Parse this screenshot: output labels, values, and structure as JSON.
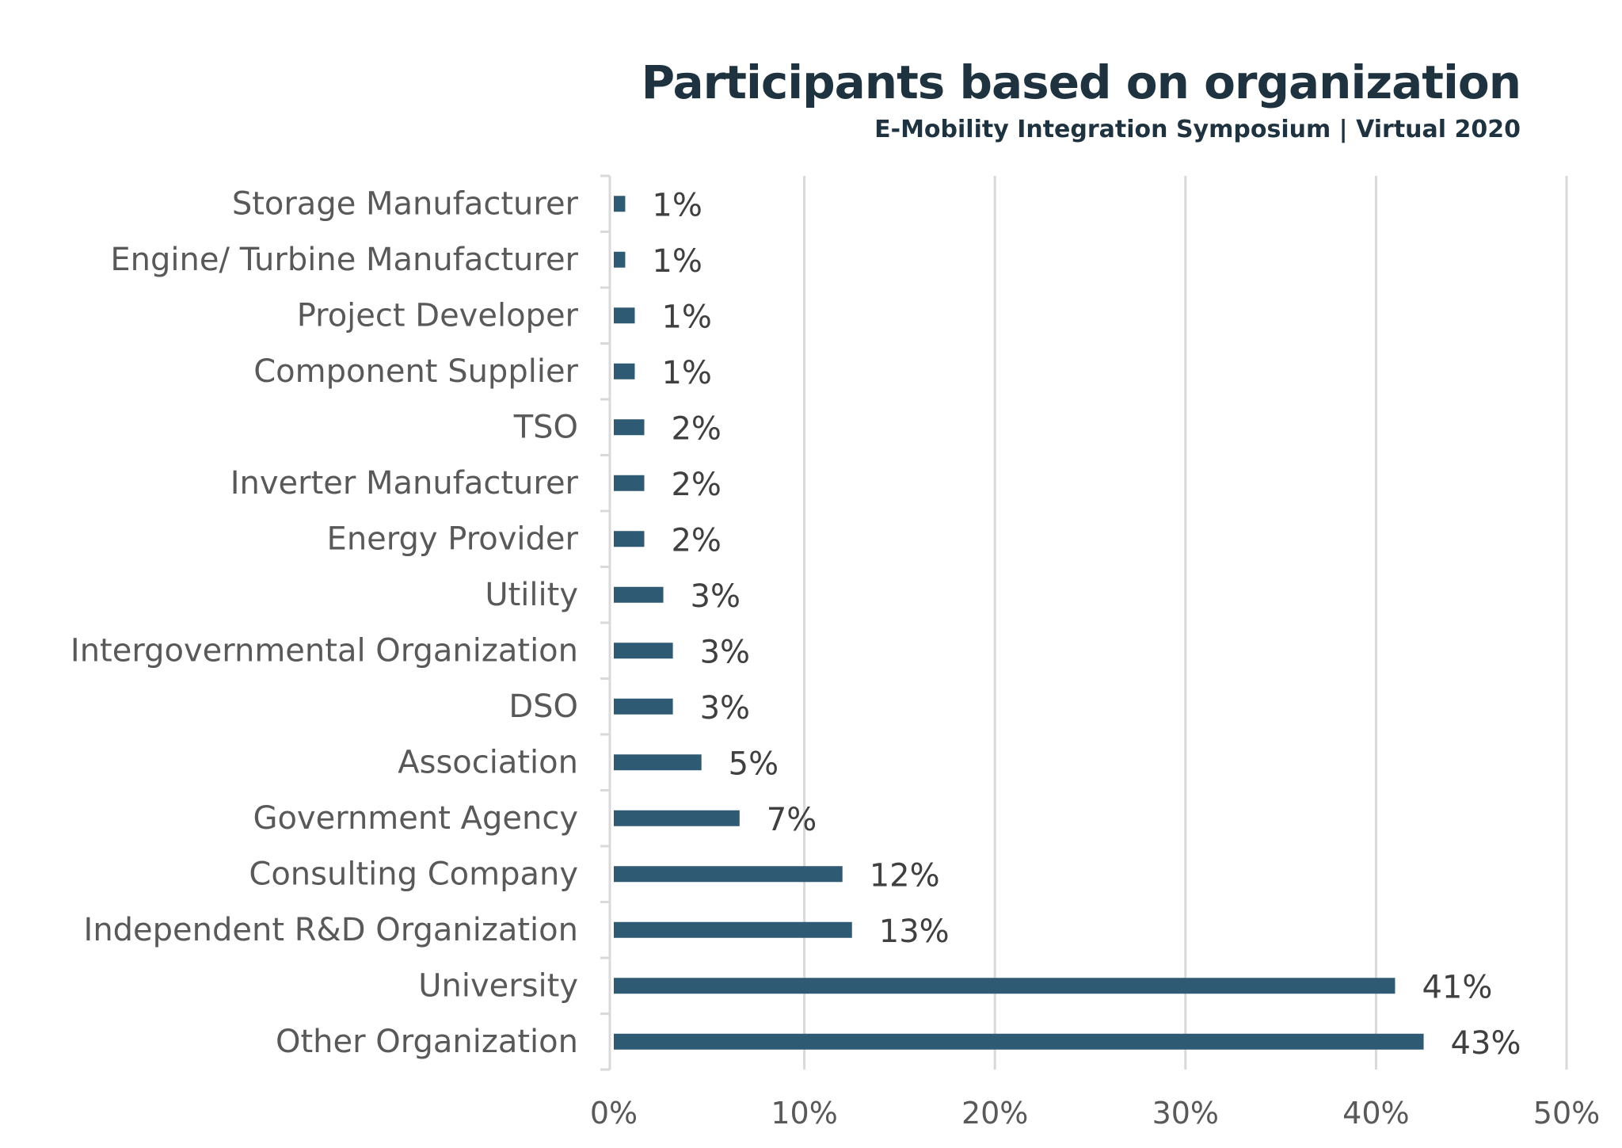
{
  "chart_data": {
    "type": "bar",
    "orientation": "horizontal",
    "title": "Participants based on organization",
    "subtitle": "E-Mobility Integration Symposium | Virtual 2020",
    "xlabel": "",
    "ylabel": "",
    "xlim": [
      0,
      50
    ],
    "x_ticks": [
      "0%",
      "10%",
      "20%",
      "30%",
      "40%",
      "50%"
    ],
    "grid": true,
    "legend": "none",
    "bar_color": "#2e5a73",
    "categories": [
      "Storage Manufacturer",
      "Engine/ Turbine Manufacturer",
      "Project Developer",
      "Component Supplier",
      "TSO",
      "Inverter Manufacturer",
      "Energy Provider",
      "Utility",
      "Intergovernmental Organization",
      "DSO",
      "Association",
      "Government Agency",
      "Consulting Company",
      "Independent R&D Organization",
      "University",
      "Other Organization"
    ],
    "values": [
      0.6,
      0.6,
      1.1,
      1.1,
      1.6,
      1.6,
      1.6,
      2.6,
      3.1,
      3.1,
      4.6,
      6.6,
      12.0,
      12.5,
      41.0,
      42.5
    ],
    "data_labels": [
      "1%",
      "1%",
      "1%",
      "1%",
      "2%",
      "2%",
      "2%",
      "3%",
      "3%",
      "3%",
      "5%",
      "7%",
      "12%",
      "13%",
      "41%",
      "43%"
    ]
  }
}
